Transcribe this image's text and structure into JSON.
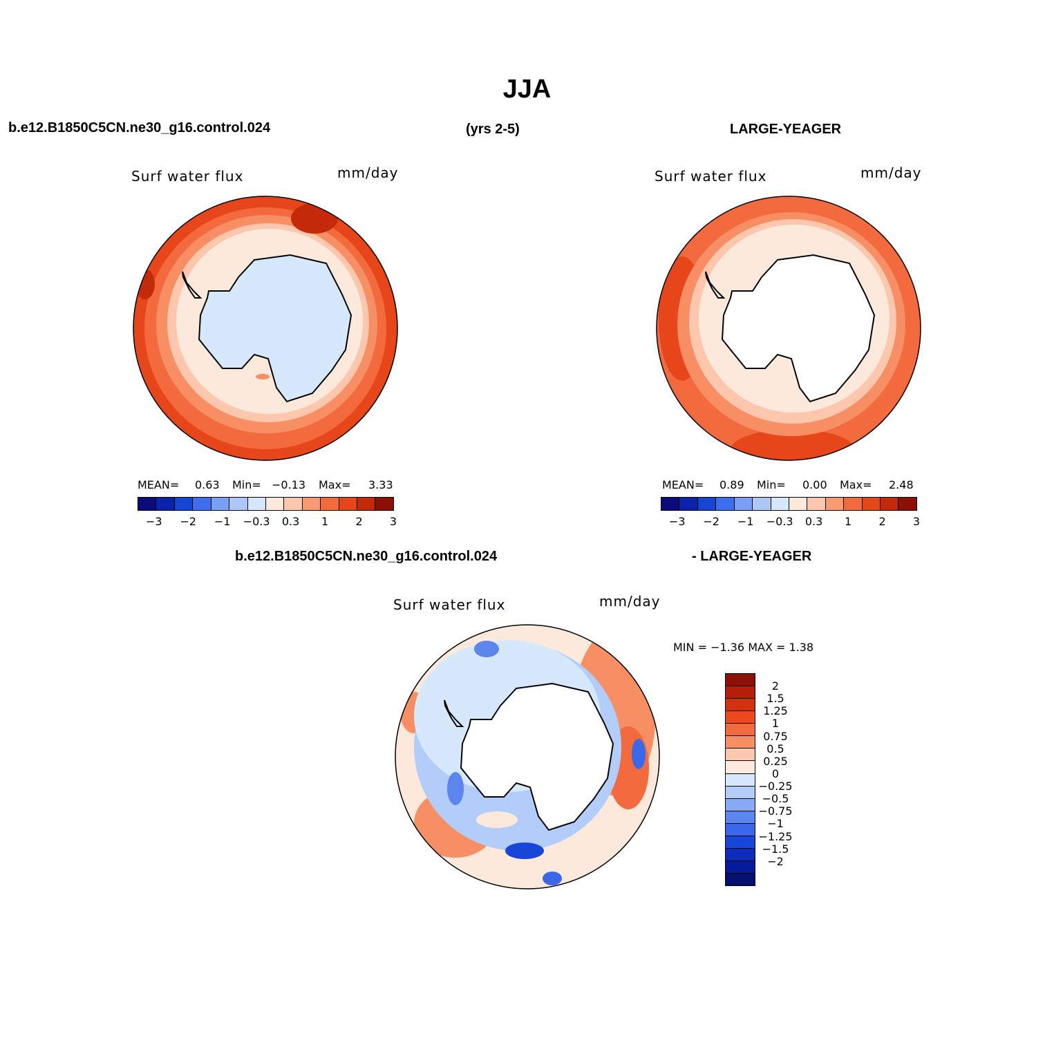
{
  "title": "JJA",
  "header": {
    "case_name": "b.e12.B1850C5CN.ne30_g16.control.024",
    "years": "(yrs 2-5)",
    "obs_name": "LARGE-YEAGER"
  },
  "diff_header": {
    "left": "b.e12.B1850C5CN.ne30_g16.control.024",
    "right": "- LARGE-YEAGER"
  },
  "panels": {
    "case": {
      "variable": "Surf water flux",
      "units": "mm/day",
      "mean_label": "MEAN=",
      "mean": "0.63",
      "min_label": "Min=",
      "min": "−0.13",
      "max_label": "Max=",
      "max": "3.33"
    },
    "obs": {
      "variable": "Surf water flux",
      "units": "mm/day",
      "mean_label": "MEAN=",
      "mean": "0.89",
      "min_label": "Min=",
      "min": "0.00",
      "max_label": "Max=",
      "max": "2.48"
    },
    "diff": {
      "variable": "Surf water flux",
      "units": "mm/day",
      "minmax": "MIN =   −1.36 MAX =    1.38"
    }
  },
  "colorbar_horizontal": {
    "colors": [
      "#0a0a78",
      "#0a21aa",
      "#1546d2",
      "#3d6ef0",
      "#7aa0f5",
      "#adc7f8",
      "#d6e8fb",
      "#fde9dc",
      "#fcc7ad",
      "#f89a72",
      "#f26a3e",
      "#e6461a",
      "#c42a0a",
      "#8c1005"
    ],
    "tick_labels": [
      "−3",
      "−2",
      "−1",
      "−0.3",
      "0.3",
      "1",
      "2",
      "3"
    ]
  },
  "colorbar_vertical": {
    "colors": [
      "#8c1005",
      "#b41e0a",
      "#d2300f",
      "#ec4a1e",
      "#f26a3e",
      "#f88e64",
      "#fcc7ad",
      "#fde9dc",
      "#d6e8fb",
      "#b2cdf9",
      "#88aaf4",
      "#5a86ee",
      "#3a67ea",
      "#1846d8",
      "#0c2cbc",
      "#061a9c",
      "#050f70"
    ],
    "tick_labels": [
      "2",
      "1.5",
      "1.25",
      "1",
      "0.75",
      "0.5",
      "0.25",
      "0",
      "−0.25",
      "−0.5",
      "−0.75",
      "−1",
      "−1.25",
      "−1.5",
      "−2"
    ]
  }
}
